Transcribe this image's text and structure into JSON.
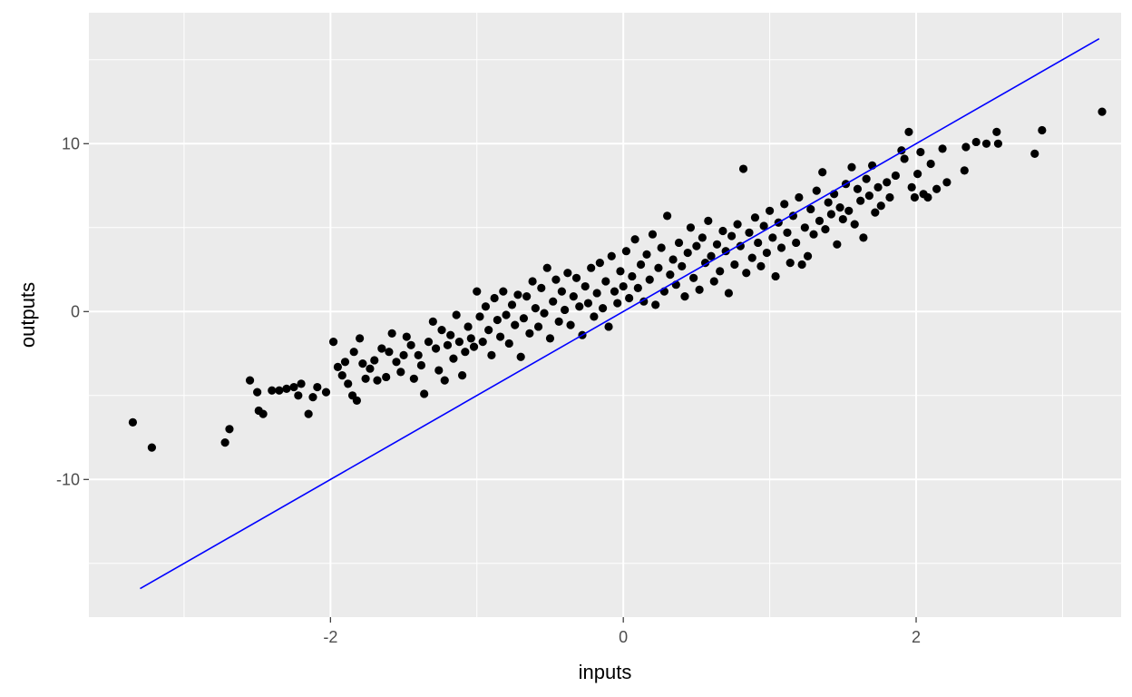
{
  "chart_data": {
    "type": "scatter",
    "title": "",
    "xlabel": "inputs",
    "ylabel": "outputs",
    "xlim": [
      -3.65,
      3.4
    ],
    "ylim": [
      -18.2,
      17.8
    ],
    "x_major_ticks": [
      -2,
      0,
      2
    ],
    "x_minor_ticks": [
      -3,
      -1,
      1,
      3
    ],
    "y_major_ticks": [
      -10,
      0,
      10
    ],
    "y_minor_ticks": [
      -15,
      -5,
      5,
      15
    ],
    "grid": true,
    "legend": "none",
    "colors": {
      "panel_background": "#ebebeb",
      "grid": "#ffffff",
      "points": "#000000",
      "line": "#0000ff"
    },
    "reference_line": {
      "slope": 5,
      "intercept": 0,
      "x_range": [
        -3.3,
        3.25
      ]
    },
    "point_count_note": "Sampled approximation of the dense cloud of points shown",
    "points": [
      [
        -3.35,
        -6.6
      ],
      [
        -3.22,
        -8.1
      ],
      [
        -2.72,
        -7.8
      ],
      [
        -2.69,
        -7.0
      ],
      [
        -2.55,
        -4.1
      ],
      [
        -2.5,
        -4.8
      ],
      [
        -2.49,
        -5.9
      ],
      [
        -2.46,
        -6.1
      ],
      [
        -2.4,
        -4.7
      ],
      [
        -2.35,
        -4.7
      ],
      [
        -2.3,
        -4.6
      ],
      [
        -2.25,
        -4.5
      ],
      [
        -2.22,
        -5.0
      ],
      [
        -2.2,
        -4.3
      ],
      [
        -2.15,
        -6.1
      ],
      [
        -2.12,
        -5.1
      ],
      [
        -2.09,
        -4.5
      ],
      [
        -2.03,
        -4.8
      ],
      [
        -1.98,
        -1.8
      ],
      [
        -1.95,
        -3.3
      ],
      [
        -1.92,
        -3.8
      ],
      [
        -1.9,
        -3.0
      ],
      [
        -1.88,
        -4.3
      ],
      [
        -1.85,
        -5.0
      ],
      [
        -1.84,
        -2.4
      ],
      [
        -1.82,
        -5.3
      ],
      [
        -1.8,
        -1.6
      ],
      [
        -1.78,
        -3.1
      ],
      [
        -1.76,
        -4.0
      ],
      [
        -1.73,
        -3.4
      ],
      [
        -1.7,
        -2.9
      ],
      [
        -1.68,
        -4.1
      ],
      [
        -1.65,
        -2.2
      ],
      [
        -1.62,
        -3.9
      ],
      [
        -1.6,
        -2.4
      ],
      [
        -1.58,
        -1.3
      ],
      [
        -1.55,
        -3.0
      ],
      [
        -1.52,
        -3.6
      ],
      [
        -1.5,
        -2.6
      ],
      [
        -1.48,
        -1.5
      ],
      [
        -1.45,
        -2.0
      ],
      [
        -1.43,
        -4.0
      ],
      [
        -1.4,
        -2.6
      ],
      [
        -1.38,
        -3.2
      ],
      [
        -1.36,
        -4.9
      ],
      [
        -1.33,
        -1.8
      ],
      [
        -1.3,
        -0.6
      ],
      [
        -1.28,
        -2.2
      ],
      [
        -1.26,
        -3.5
      ],
      [
        -1.24,
        -1.1
      ],
      [
        -1.22,
        -4.1
      ],
      [
        -1.2,
        -2.0
      ],
      [
        -1.18,
        -1.4
      ],
      [
        -1.16,
        -2.8
      ],
      [
        -1.14,
        -0.2
      ],
      [
        -1.12,
        -1.8
      ],
      [
        -1.1,
        -3.8
      ],
      [
        -1.08,
        -2.4
      ],
      [
        -1.06,
        -0.9
      ],
      [
        -1.04,
        -1.6
      ],
      [
        -1.02,
        -2.1
      ],
      [
        -1.0,
        1.2
      ],
      [
        -0.98,
        -0.3
      ],
      [
        -0.96,
        -1.8
      ],
      [
        -0.94,
        0.3
      ],
      [
        -0.92,
        -1.1
      ],
      [
        -0.9,
        -2.6
      ],
      [
        -0.88,
        0.8
      ],
      [
        -0.86,
        -0.5
      ],
      [
        -0.84,
        -1.5
      ],
      [
        -0.82,
        1.2
      ],
      [
        -0.8,
        -0.2
      ],
      [
        -0.78,
        -1.9
      ],
      [
        -0.76,
        0.4
      ],
      [
        -0.74,
        -0.8
      ],
      [
        -0.72,
        1.0
      ],
      [
        -0.7,
        -2.7
      ],
      [
        -0.68,
        -0.4
      ],
      [
        -0.66,
        0.9
      ],
      [
        -0.64,
        -1.3
      ],
      [
        -0.62,
        1.8
      ],
      [
        -0.6,
        0.2
      ],
      [
        -0.58,
        -0.9
      ],
      [
        -0.56,
        1.4
      ],
      [
        -0.54,
        -0.1
      ],
      [
        -0.52,
        2.6
      ],
      [
        -0.5,
        -1.6
      ],
      [
        -0.48,
        0.6
      ],
      [
        -0.46,
        1.9
      ],
      [
        -0.44,
        -0.6
      ],
      [
        -0.42,
        1.2
      ],
      [
        -0.4,
        0.1
      ],
      [
        -0.38,
        2.3
      ],
      [
        -0.36,
        -0.8
      ],
      [
        -0.34,
        0.9
      ],
      [
        -0.32,
        2.0
      ],
      [
        -0.3,
        0.3
      ],
      [
        -0.28,
        -1.4
      ],
      [
        -0.26,
        1.5
      ],
      [
        -0.24,
        0.5
      ],
      [
        -0.22,
        2.6
      ],
      [
        -0.2,
        -0.3
      ],
      [
        -0.18,
        1.1
      ],
      [
        -0.16,
        2.9
      ],
      [
        -0.14,
        0.2
      ],
      [
        -0.12,
        1.8
      ],
      [
        -0.1,
        -0.9
      ],
      [
        -0.08,
        3.3
      ],
      [
        -0.06,
        1.2
      ],
      [
        -0.04,
        0.5
      ],
      [
        -0.02,
        2.4
      ],
      [
        0.0,
        1.5
      ],
      [
        0.02,
        3.6
      ],
      [
        0.04,
        0.8
      ],
      [
        0.06,
        2.1
      ],
      [
        0.08,
        4.3
      ],
      [
        0.1,
        1.4
      ],
      [
        0.12,
        2.8
      ],
      [
        0.14,
        0.6
      ],
      [
        0.16,
        3.4
      ],
      [
        0.18,
        1.9
      ],
      [
        0.2,
        4.6
      ],
      [
        0.22,
        0.4
      ],
      [
        0.24,
        2.6
      ],
      [
        0.26,
        3.8
      ],
      [
        0.28,
        1.2
      ],
      [
        0.3,
        5.7
      ],
      [
        0.32,
        2.2
      ],
      [
        0.34,
        3.1
      ],
      [
        0.36,
        1.6
      ],
      [
        0.38,
        4.1
      ],
      [
        0.4,
        2.7
      ],
      [
        0.42,
        0.9
      ],
      [
        0.44,
        3.5
      ],
      [
        0.46,
        5.0
      ],
      [
        0.48,
        2.0
      ],
      [
        0.5,
        3.9
      ],
      [
        0.52,
        1.3
      ],
      [
        0.54,
        4.4
      ],
      [
        0.56,
        2.9
      ],
      [
        0.58,
        5.4
      ],
      [
        0.6,
        3.3
      ],
      [
        0.62,
        1.8
      ],
      [
        0.64,
        4.0
      ],
      [
        0.66,
        2.4
      ],
      [
        0.68,
        4.8
      ],
      [
        0.7,
        3.6
      ],
      [
        0.72,
        1.1
      ],
      [
        0.74,
        4.5
      ],
      [
        0.76,
        2.8
      ],
      [
        0.78,
        5.2
      ],
      [
        0.8,
        3.9
      ],
      [
        0.82,
        8.5
      ],
      [
        0.84,
        2.3
      ],
      [
        0.86,
        4.7
      ],
      [
        0.88,
        3.2
      ],
      [
        0.9,
        5.6
      ],
      [
        0.92,
        4.1
      ],
      [
        0.94,
        2.7
      ],
      [
        0.96,
        5.1
      ],
      [
        0.98,
        3.5
      ],
      [
        1.0,
        6.0
      ],
      [
        1.02,
        4.4
      ],
      [
        1.04,
        2.1
      ],
      [
        1.06,
        5.3
      ],
      [
        1.08,
        3.8
      ],
      [
        1.1,
        6.4
      ],
      [
        1.12,
        4.7
      ],
      [
        1.14,
        2.9
      ],
      [
        1.16,
        5.7
      ],
      [
        1.18,
        4.1
      ],
      [
        1.2,
        6.8
      ],
      [
        1.22,
        2.8
      ],
      [
        1.24,
        5.0
      ],
      [
        1.26,
        3.3
      ],
      [
        1.28,
        6.1
      ],
      [
        1.3,
        4.6
      ],
      [
        1.32,
        7.2
      ],
      [
        1.34,
        5.4
      ],
      [
        1.36,
        8.3
      ],
      [
        1.38,
        4.9
      ],
      [
        1.4,
        6.5
      ],
      [
        1.42,
        5.8
      ],
      [
        1.44,
        7.0
      ],
      [
        1.46,
        4.0
      ],
      [
        1.48,
        6.2
      ],
      [
        1.5,
        5.5
      ],
      [
        1.52,
        7.6
      ],
      [
        1.54,
        6.0
      ],
      [
        1.56,
        8.6
      ],
      [
        1.58,
        5.2
      ],
      [
        1.6,
        7.3
      ],
      [
        1.62,
        6.6
      ],
      [
        1.64,
        4.4
      ],
      [
        1.66,
        7.9
      ],
      [
        1.68,
        6.9
      ],
      [
        1.7,
        8.7
      ],
      [
        1.72,
        5.9
      ],
      [
        1.74,
        7.4
      ],
      [
        1.76,
        6.3
      ],
      [
        1.8,
        7.7
      ],
      [
        1.82,
        6.8
      ],
      [
        1.86,
        8.1
      ],
      [
        1.9,
        9.6
      ],
      [
        1.92,
        9.1
      ],
      [
        1.95,
        10.7
      ],
      [
        1.97,
        7.4
      ],
      [
        1.99,
        6.8
      ],
      [
        2.01,
        8.2
      ],
      [
        2.03,
        9.5
      ],
      [
        2.05,
        7.0
      ],
      [
        2.08,
        6.8
      ],
      [
        2.1,
        8.8
      ],
      [
        2.14,
        7.3
      ],
      [
        2.18,
        9.7
      ],
      [
        2.21,
        7.7
      ],
      [
        2.33,
        8.4
      ],
      [
        2.34,
        9.8
      ],
      [
        2.41,
        10.1
      ],
      [
        2.48,
        10.0
      ],
      [
        2.55,
        10.7
      ],
      [
        2.56,
        10.0
      ],
      [
        2.81,
        9.4
      ],
      [
        2.86,
        10.8
      ],
      [
        3.27,
        11.9
      ]
    ]
  }
}
